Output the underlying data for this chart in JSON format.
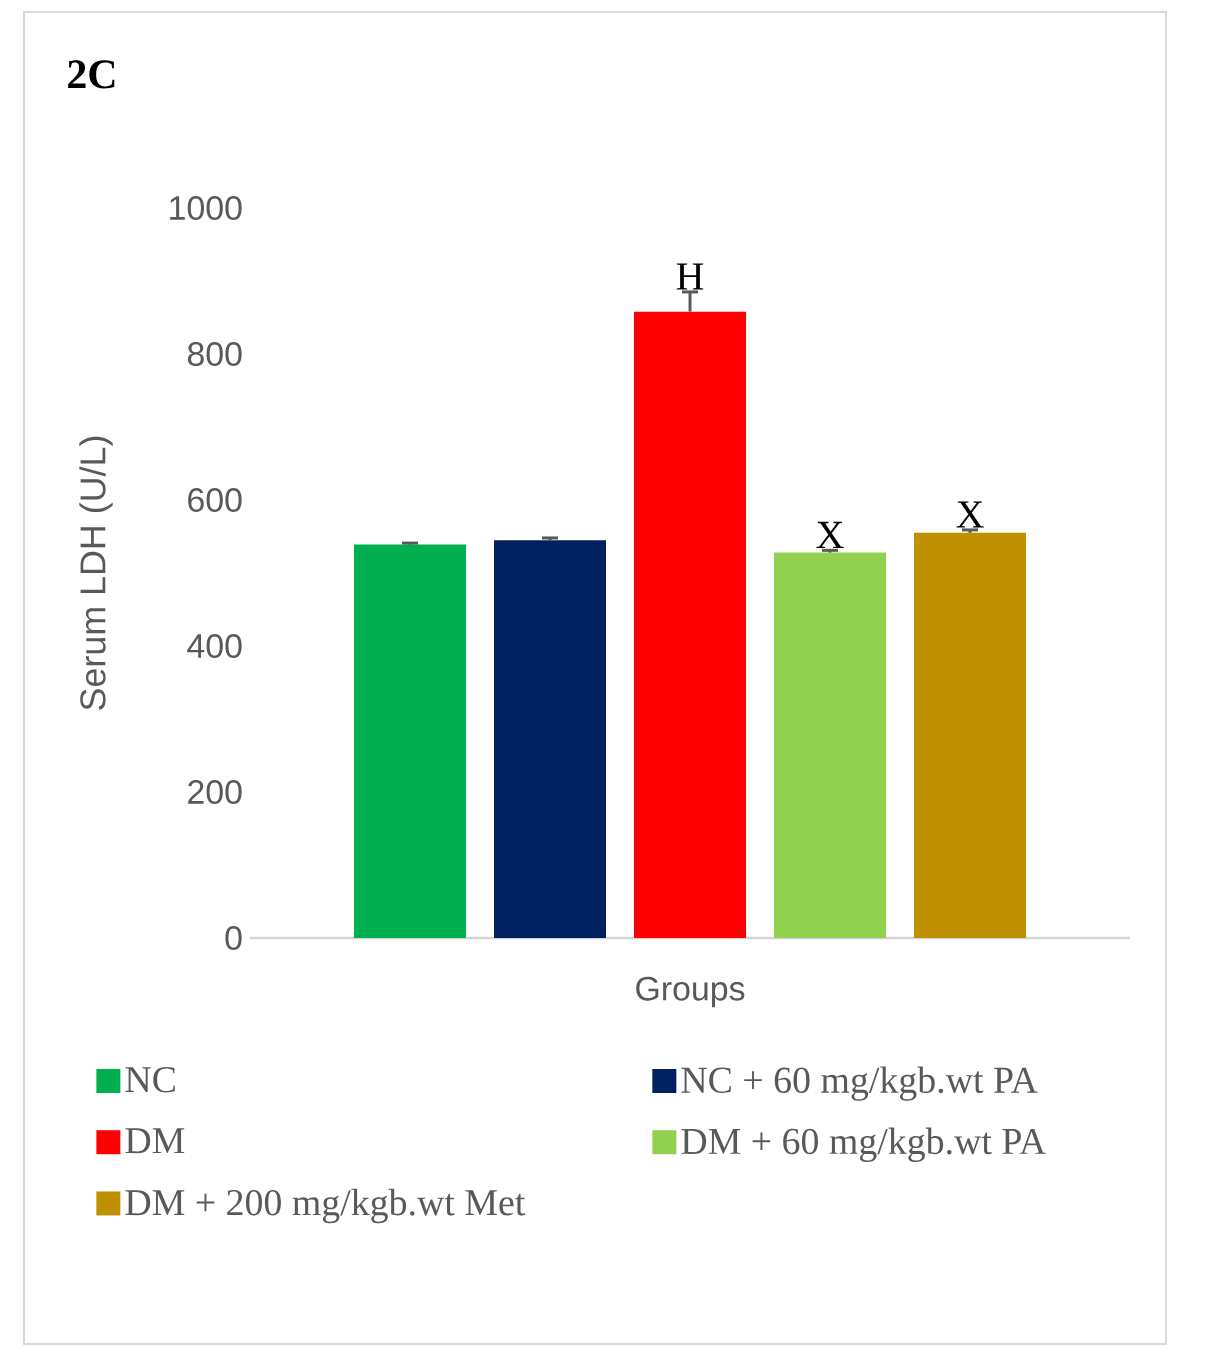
{
  "chart_data": {
    "type": "bar",
    "title": "2C",
    "ylabel": "Serum  LDH  (U/L)",
    "xlabel": "Groups",
    "categories": [
      null
    ],
    "series": [
      {
        "name": "NC",
        "color": "#00b050",
        "values": [
          539
        ],
        "errors": [
          2
        ]
      },
      {
        "name": "NC + 60 mg/kgb.wt PA",
        "color": "#002060",
        "values": [
          545
        ],
        "errors": [
          3
        ]
      },
      {
        "name": "DM",
        "color": "#ff0000",
        "values": [
          858
        ],
        "errors": [
          27
        ]
      },
      {
        "name": "DM + 60 mg/kgb.wt PA",
        "color": "#92d050",
        "values": [
          528
        ],
        "errors": [
          3
        ]
      },
      {
        "name": "DM + 200 mg/kgb.wt Met",
        "color": "#bf9000",
        "values": [
          555
        ],
        "errors": [
          4
        ]
      }
    ],
    "ylim": [
      0,
      1000
    ],
    "yticks": [
      0,
      200,
      400,
      600,
      800,
      1000
    ],
    "annotations": [
      {
        "text": "H",
        "y": 885
      },
      {
        "text": "X",
        "y": 531
      },
      {
        "text": "X",
        "y": 559
      }
    ],
    "grid": false,
    "legend": "bottom"
  }
}
